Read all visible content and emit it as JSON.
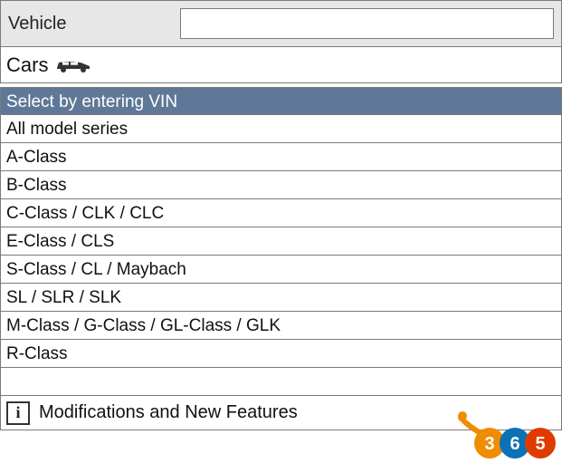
{
  "header": {
    "label": "Vehicle",
    "input_value": "",
    "input_placeholder": ""
  },
  "category": {
    "label": "Cars",
    "icon_name": "car-icon",
    "icon_color": "#333333"
  },
  "list": {
    "items": [
      {
        "label": "Select by entering VIN",
        "selected": true
      },
      {
        "label": "All model series",
        "selected": false
      },
      {
        "label": "A-Class",
        "selected": false
      },
      {
        "label": "B-Class",
        "selected": false
      },
      {
        "label": "C-Class / CLK / CLC",
        "selected": false
      },
      {
        "label": "E-Class / CLS",
        "selected": false
      },
      {
        "label": "S-Class / CL / Maybach",
        "selected": false
      },
      {
        "label": "SL / SLR / SLK",
        "selected": false
      },
      {
        "label": "M-Class / G-Class / GL-Class / GLK",
        "selected": false
      },
      {
        "label": "R-Class",
        "selected": false
      },
      {
        "label": "",
        "selected": false
      }
    ],
    "selected_bg": "#5f7897",
    "selected_fg": "#ffffff",
    "row_bg": "#ffffff",
    "row_fg": "#111111",
    "border_color": "#7a7a7a"
  },
  "footer": {
    "info_glyph": "i",
    "text": "Modifications and New Features"
  },
  "logo": {
    "digits": "365",
    "digit_color": "#ffffff",
    "circle_colors": [
      "#f08c00",
      "#0b72b5",
      "#e03a00"
    ],
    "smile_color": "#f08c00"
  },
  "colors": {
    "header_bg": "#e7e7e7",
    "page_bg": "#ffffff"
  }
}
